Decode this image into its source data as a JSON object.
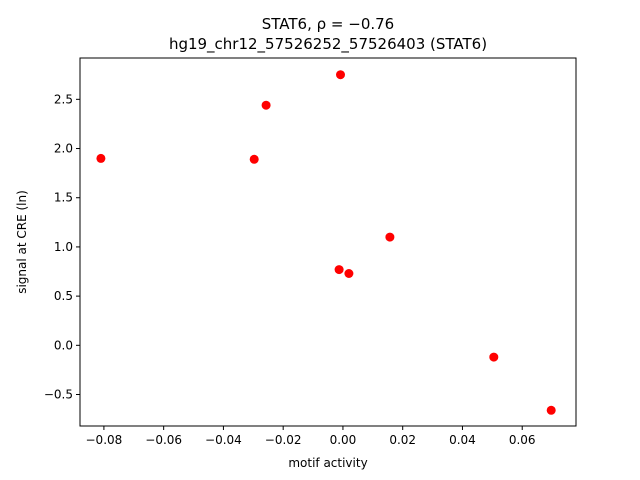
{
  "chart_data": {
    "type": "scatter",
    "title_line1": "STAT6, ρ = −0.76",
    "title_line2": "hg19_chr12_57526252_57526403 (STAT6)",
    "xlabel": "motif activity",
    "ylabel": "signal at CRE (ln)",
    "xlim": [
      -0.088,
      0.078
    ],
    "ylim": [
      -0.82,
      2.92
    ],
    "xticks": [
      -0.08,
      -0.06,
      -0.04,
      -0.02,
      0.0,
      0.02,
      0.04,
      0.06
    ],
    "xtick_labels": [
      "−0.08",
      "−0.06",
      "−0.04",
      "−0.02",
      "0.00",
      "0.02",
      "0.04",
      "0.06"
    ],
    "yticks": [
      -0.5,
      0.0,
      0.5,
      1.0,
      1.5,
      2.0,
      2.5
    ],
    "ytick_labels": [
      "−0.5",
      "0.0",
      "0.5",
      "1.0",
      "1.5",
      "2.0",
      "2.5"
    ],
    "grid": false,
    "marker_color": "#ff0000",
    "points": [
      {
        "x": -0.081,
        "y": 1.9
      },
      {
        "x": -0.0297,
        "y": 1.89
      },
      {
        "x": -0.0257,
        "y": 2.44
      },
      {
        "x": -0.0008,
        "y": 2.75
      },
      {
        "x": -0.0013,
        "y": 0.77
      },
      {
        "x": 0.002,
        "y": 0.73
      },
      {
        "x": 0.0157,
        "y": 1.1
      },
      {
        "x": 0.0505,
        "y": -0.12
      },
      {
        "x": 0.0697,
        "y": -0.66
      }
    ]
  }
}
